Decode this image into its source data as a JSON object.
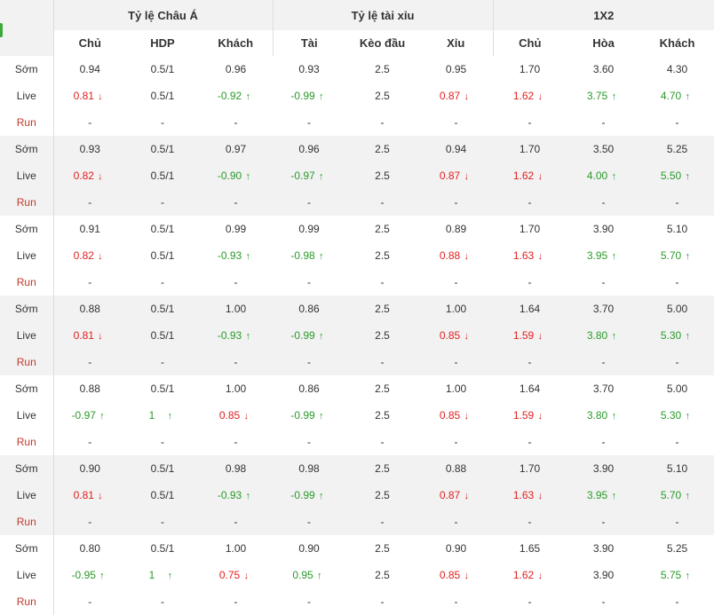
{
  "header": {
    "groups": [
      "Tỷ lệ Châu Á",
      "Tỷ lệ tài xỉu",
      "1X2"
    ],
    "columns": [
      "Chủ",
      "HDP",
      "Khách",
      "Tài",
      "Kèo đầu",
      "Xỉu",
      "Chủ",
      "Hòa",
      "Khách"
    ]
  },
  "colors": {
    "up": "#2a9a2a",
    "down": "#e02020",
    "run_label": "#c0392b",
    "accent": "#3da93d"
  },
  "icons": {
    "up": "arrow-up-icon",
    "down": "arrow-down-icon"
  },
  "rows": [
    {
      "label": "Sớm",
      "shaded": false,
      "cells": [
        {
          "v": "0.94"
        },
        {
          "v": "0.5/1"
        },
        {
          "v": "0.96"
        },
        {
          "v": "0.93"
        },
        {
          "v": "2.5"
        },
        {
          "v": "0.95"
        },
        {
          "v": "1.70"
        },
        {
          "v": "3.60"
        },
        {
          "v": "4.30"
        }
      ]
    },
    {
      "label": "Live",
      "shaded": false,
      "cells": [
        {
          "v": "0.81",
          "d": "down"
        },
        {
          "v": "0.5/1"
        },
        {
          "v": "-0.92",
          "d": "up"
        },
        {
          "v": "-0.99",
          "d": "up"
        },
        {
          "v": "2.5"
        },
        {
          "v": "0.87",
          "d": "down"
        },
        {
          "v": "1.62",
          "d": "down"
        },
        {
          "v": "3.75",
          "d": "up"
        },
        {
          "v": "4.70",
          "d": "up"
        }
      ]
    },
    {
      "label": "Run",
      "shaded": false,
      "run": true,
      "cells": [
        {
          "v": "-"
        },
        {
          "v": "-"
        },
        {
          "v": "-"
        },
        {
          "v": "-"
        },
        {
          "v": "-"
        },
        {
          "v": "-"
        },
        {
          "v": "-"
        },
        {
          "v": "-"
        },
        {
          "v": "-"
        }
      ]
    },
    {
      "label": "Sớm",
      "shaded": true,
      "cells": [
        {
          "v": "0.93"
        },
        {
          "v": "0.5/1"
        },
        {
          "v": "0.97"
        },
        {
          "v": "0.96"
        },
        {
          "v": "2.5"
        },
        {
          "v": "0.94"
        },
        {
          "v": "1.70"
        },
        {
          "v": "3.50"
        },
        {
          "v": "5.25"
        }
      ]
    },
    {
      "label": "Live",
      "shaded": true,
      "cells": [
        {
          "v": "0.82",
          "d": "down"
        },
        {
          "v": "0.5/1"
        },
        {
          "v": "-0.90",
          "d": "up"
        },
        {
          "v": "-0.97",
          "d": "up"
        },
        {
          "v": "2.5"
        },
        {
          "v": "0.87",
          "d": "down"
        },
        {
          "v": "1.62",
          "d": "down"
        },
        {
          "v": "4.00",
          "d": "up"
        },
        {
          "v": "5.50",
          "d": "up"
        }
      ]
    },
    {
      "label": "Run",
      "shaded": true,
      "run": true,
      "cells": [
        {
          "v": "-"
        },
        {
          "v": "-"
        },
        {
          "v": "-"
        },
        {
          "v": "-"
        },
        {
          "v": "-"
        },
        {
          "v": "-"
        },
        {
          "v": "-"
        },
        {
          "v": "-"
        },
        {
          "v": "-"
        }
      ]
    },
    {
      "label": "Sớm",
      "shaded": false,
      "cells": [
        {
          "v": "0.91"
        },
        {
          "v": "0.5/1"
        },
        {
          "v": "0.99"
        },
        {
          "v": "0.99"
        },
        {
          "v": "2.5"
        },
        {
          "v": "0.89"
        },
        {
          "v": "1.70"
        },
        {
          "v": "3.90"
        },
        {
          "v": "5.10"
        }
      ]
    },
    {
      "label": "Live",
      "shaded": false,
      "cells": [
        {
          "v": "0.82",
          "d": "down"
        },
        {
          "v": "0.5/1"
        },
        {
          "v": "-0.93",
          "d": "up"
        },
        {
          "v": "-0.98",
          "d": "up"
        },
        {
          "v": "2.5"
        },
        {
          "v": "0.88",
          "d": "down"
        },
        {
          "v": "1.63",
          "d": "down"
        },
        {
          "v": "3.95",
          "d": "up"
        },
        {
          "v": "5.70",
          "d": "up"
        }
      ]
    },
    {
      "label": "Run",
      "shaded": false,
      "run": true,
      "cells": [
        {
          "v": "-"
        },
        {
          "v": "-"
        },
        {
          "v": "-"
        },
        {
          "v": "-"
        },
        {
          "v": "-"
        },
        {
          "v": "-"
        },
        {
          "v": "-"
        },
        {
          "v": "-"
        },
        {
          "v": "-"
        }
      ]
    },
    {
      "label": "Sớm",
      "shaded": true,
      "cells": [
        {
          "v": "0.88"
        },
        {
          "v": "0.5/1"
        },
        {
          "v": "1.00"
        },
        {
          "v": "0.86"
        },
        {
          "v": "2.5"
        },
        {
          "v": "1.00"
        },
        {
          "v": "1.64"
        },
        {
          "v": "3.70"
        },
        {
          "v": "5.00"
        }
      ]
    },
    {
      "label": "Live",
      "shaded": true,
      "cells": [
        {
          "v": "0.81",
          "d": "down"
        },
        {
          "v": "0.5/1"
        },
        {
          "v": "-0.93",
          "d": "up"
        },
        {
          "v": "-0.99",
          "d": "up"
        },
        {
          "v": "2.5"
        },
        {
          "v": "0.85",
          "d": "down"
        },
        {
          "v": "1.59",
          "d": "down"
        },
        {
          "v": "3.80",
          "d": "up"
        },
        {
          "v": "5.30",
          "d": "up"
        }
      ]
    },
    {
      "label": "Run",
      "shaded": true,
      "run": true,
      "cells": [
        {
          "v": "-"
        },
        {
          "v": "-"
        },
        {
          "v": "-"
        },
        {
          "v": "-"
        },
        {
          "v": "-"
        },
        {
          "v": "-"
        },
        {
          "v": "-"
        },
        {
          "v": "-"
        },
        {
          "v": "-"
        }
      ]
    },
    {
      "label": "Sớm",
      "shaded": false,
      "cells": [
        {
          "v": "0.88"
        },
        {
          "v": "0.5/1"
        },
        {
          "v": "1.00"
        },
        {
          "v": "0.86"
        },
        {
          "v": "2.5"
        },
        {
          "v": "1.00"
        },
        {
          "v": "1.64"
        },
        {
          "v": "3.70"
        },
        {
          "v": "5.00"
        }
      ]
    },
    {
      "label": "Live",
      "shaded": false,
      "cells": [
        {
          "v": "-0.97",
          "d": "up"
        },
        {
          "v": "1",
          "d": "up"
        },
        {
          "v": "0.85",
          "d": "down"
        },
        {
          "v": "-0.99",
          "d": "up"
        },
        {
          "v": "2.5"
        },
        {
          "v": "0.85",
          "d": "down"
        },
        {
          "v": "1.59",
          "d": "down"
        },
        {
          "v": "3.80",
          "d": "up"
        },
        {
          "v": "5.30",
          "d": "up"
        }
      ]
    },
    {
      "label": "Run",
      "shaded": false,
      "run": true,
      "cells": [
        {
          "v": "-"
        },
        {
          "v": "-"
        },
        {
          "v": "-"
        },
        {
          "v": "-"
        },
        {
          "v": "-"
        },
        {
          "v": "-"
        },
        {
          "v": "-"
        },
        {
          "v": "-"
        },
        {
          "v": "-"
        }
      ]
    },
    {
      "label": "Sớm",
      "shaded": true,
      "cells": [
        {
          "v": "0.90"
        },
        {
          "v": "0.5/1"
        },
        {
          "v": "0.98"
        },
        {
          "v": "0.98"
        },
        {
          "v": "2.5"
        },
        {
          "v": "0.88"
        },
        {
          "v": "1.70"
        },
        {
          "v": "3.90"
        },
        {
          "v": "5.10"
        }
      ]
    },
    {
      "label": "Live",
      "shaded": true,
      "cells": [
        {
          "v": "0.81",
          "d": "down"
        },
        {
          "v": "0.5/1"
        },
        {
          "v": "-0.93",
          "d": "up"
        },
        {
          "v": "-0.99",
          "d": "up"
        },
        {
          "v": "2.5"
        },
        {
          "v": "0.87",
          "d": "down"
        },
        {
          "v": "1.63",
          "d": "down"
        },
        {
          "v": "3.95",
          "d": "up"
        },
        {
          "v": "5.70",
          "d": "up"
        }
      ]
    },
    {
      "label": "Run",
      "shaded": true,
      "run": true,
      "cells": [
        {
          "v": "-"
        },
        {
          "v": "-"
        },
        {
          "v": "-"
        },
        {
          "v": "-"
        },
        {
          "v": "-"
        },
        {
          "v": "-"
        },
        {
          "v": "-"
        },
        {
          "v": "-"
        },
        {
          "v": "-"
        }
      ]
    },
    {
      "label": "Sớm",
      "shaded": false,
      "cells": [
        {
          "v": "0.80"
        },
        {
          "v": "0.5/1"
        },
        {
          "v": "1.00"
        },
        {
          "v": "0.90"
        },
        {
          "v": "2.5"
        },
        {
          "v": "0.90"
        },
        {
          "v": "1.65"
        },
        {
          "v": "3.90"
        },
        {
          "v": "5.25"
        }
      ]
    },
    {
      "label": "Live",
      "shaded": false,
      "cells": [
        {
          "v": "-0.95",
          "d": "up"
        },
        {
          "v": "1",
          "d": "up"
        },
        {
          "v": "0.75",
          "d": "down"
        },
        {
          "v": "0.95",
          "d": "up"
        },
        {
          "v": "2.5"
        },
        {
          "v": "0.85",
          "d": "down"
        },
        {
          "v": "1.62",
          "d": "down"
        },
        {
          "v": "3.90"
        },
        {
          "v": "5.75",
          "d": "up"
        }
      ]
    },
    {
      "label": "Run",
      "shaded": false,
      "run": true,
      "cells": [
        {
          "v": "-"
        },
        {
          "v": "-"
        },
        {
          "v": "-"
        },
        {
          "v": "-"
        },
        {
          "v": "-"
        },
        {
          "v": "-"
        },
        {
          "v": "-"
        },
        {
          "v": "-"
        },
        {
          "v": "-"
        }
      ]
    }
  ]
}
